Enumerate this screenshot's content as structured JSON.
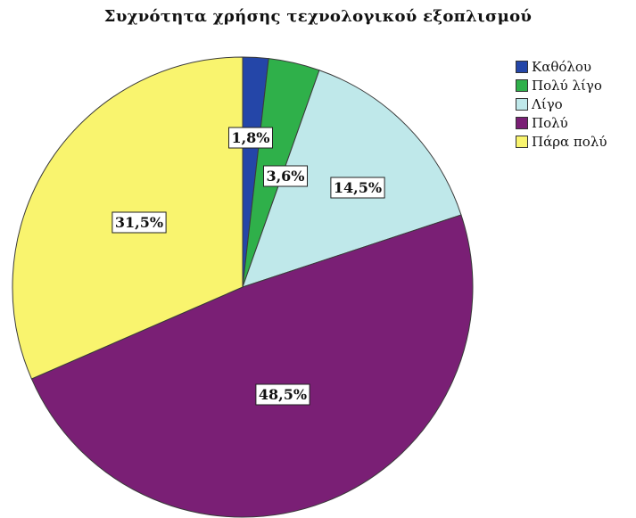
{
  "chart_data": {
    "type": "pie",
    "title": "Συχνότητα χρήσης τεχνολογικού εξοπλισμού",
    "categories": [
      "Καθόλου",
      "Πολύ λίγο",
      "Λίγο",
      "Πολύ",
      "Πάρα πολύ"
    ],
    "values": [
      1.8,
      3.6,
      14.5,
      48.5,
      31.5
    ],
    "data_labels": [
      "1,8%",
      "3,6%",
      "14,5%",
      "48,5%",
      "31,5%"
    ],
    "colors": [
      "#2446a8",
      "#2fb04a",
      "#bfe8ea",
      "#7a1f75",
      "#f9f46e"
    ],
    "legend_position": "top-right",
    "start_angle": "12 o'clock",
    "direction": "clockwise"
  }
}
